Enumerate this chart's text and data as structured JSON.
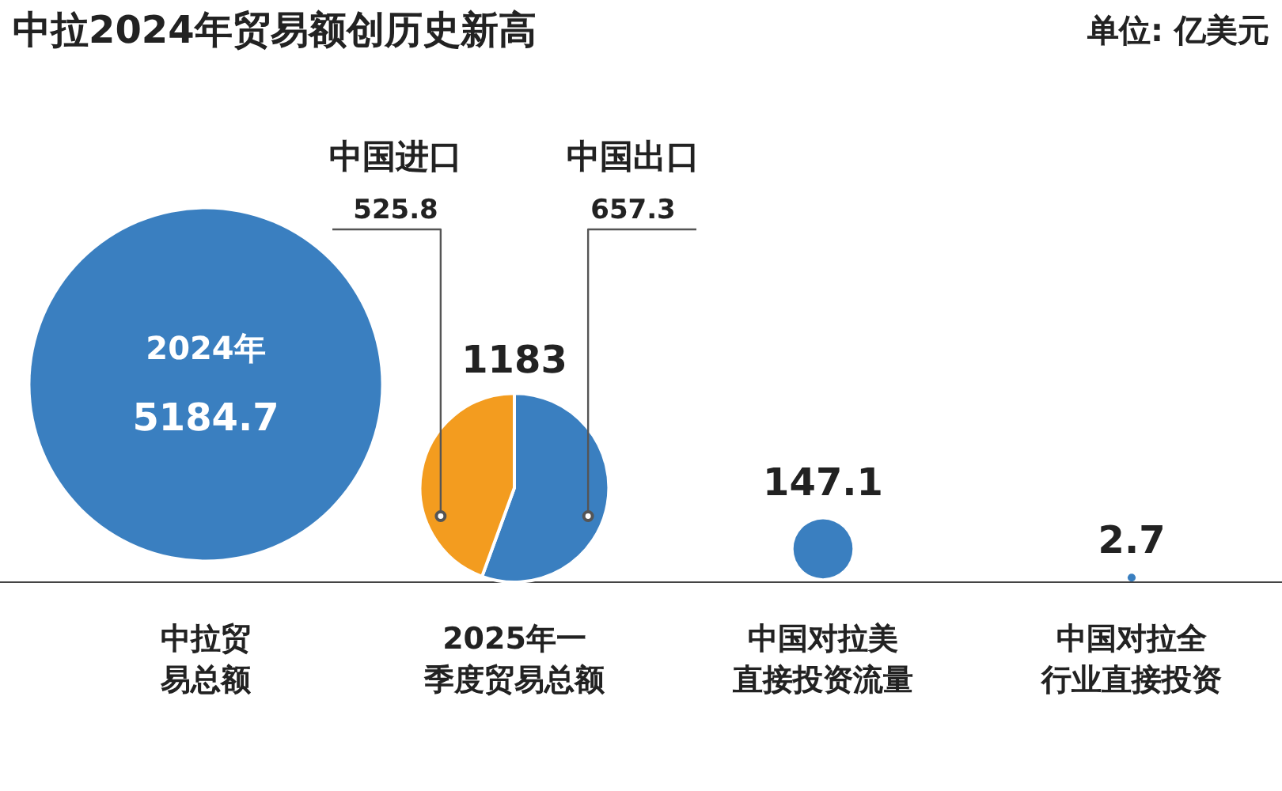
{
  "chart_data": [
    {
      "type": "other",
      "title": "中拉2024年贸易额创历史新高",
      "categories": [
        "中拉贸易总额",
        "2025年一季度贸易总额",
        "中国对拉美直接投资流量",
        "中国对拉全行业直接投资"
      ],
      "values": [
        5184.7,
        1183,
        147.1,
        2.7
      ],
      "value_labels": [
        "5184.7",
        "1183",
        "147.1",
        "2.7"
      ],
      "color": "#3a7fc0",
      "annotations": [
        "单位: 亿美元",
        "2024年"
      ]
    },
    {
      "type": "pie",
      "categories": [
        "中国出口",
        "中国进口"
      ],
      "values": [
        657.3,
        525.8
      ],
      "colors": [
        "#3a7fc0",
        "#f39c1f"
      ],
      "data_labels": true
    }
  ]
}
